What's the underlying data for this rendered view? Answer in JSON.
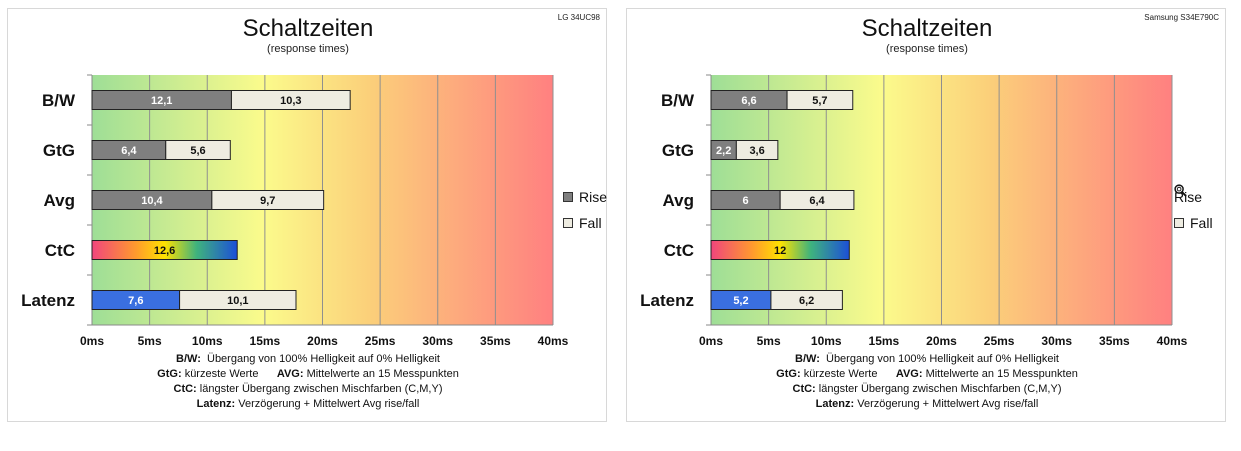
{
  "chart_data": [
    {
      "type": "bar",
      "title": "Schaltzeiten",
      "subtitle": "(response times)",
      "model": "LG 34UC98",
      "categories": [
        "B/W",
        "GtG",
        "Avg",
        "CtC",
        "Latenz"
      ],
      "series": [
        {
          "name": "Rise",
          "values": [
            12.1,
            6.4,
            10.4,
            null,
            null
          ]
        },
        {
          "name": "Fall",
          "values": [
            10.3,
            5.6,
            9.7,
            null,
            10.1
          ]
        }
      ],
      "ctc_value": 12.6,
      "latenz_delay": 7.6,
      "value_labels": {
        "B/W": [
          "12,1",
          "10,3"
        ],
        "GtG": [
          "6,4",
          "5,6"
        ],
        "Avg": [
          "10,4",
          "9,7"
        ],
        "CtC": [
          "12,6"
        ],
        "Latenz": [
          "7,6",
          "10,1"
        ]
      },
      "xlim": [
        0,
        40
      ],
      "xticks": [
        "0ms",
        "5ms",
        "10ms",
        "15ms",
        "20ms",
        "25ms",
        "30ms",
        "35ms",
        "40ms"
      ],
      "grid": true,
      "legend_position": "right"
    },
    {
      "type": "bar",
      "title": "Schaltzeiten",
      "subtitle": "(response times)",
      "model": "Samsung S34E790C",
      "categories": [
        "B/W",
        "GtG",
        "Avg",
        "CtC",
        "Latenz"
      ],
      "series": [
        {
          "name": "Rise",
          "values": [
            6.6,
            2.2,
            6,
            null,
            null
          ]
        },
        {
          "name": "Fall",
          "values": [
            5.7,
            3.6,
            6.4,
            null,
            6.2
          ]
        }
      ],
      "ctc_value": 12,
      "latenz_delay": 5.2,
      "value_labels": {
        "B/W": [
          "6,6",
          "5,7"
        ],
        "GtG": [
          "2,2",
          "3,6"
        ],
        "Avg": [
          "6",
          "6,4"
        ],
        "CtC": [
          "12"
        ],
        "Latenz": [
          "5,2",
          "6,2"
        ]
      },
      "xlim": [
        0,
        40
      ],
      "xticks": [
        "0ms",
        "5ms",
        "10ms",
        "15ms",
        "20ms",
        "25ms",
        "30ms",
        "35ms",
        "40ms"
      ],
      "grid": true,
      "legend_position": "right"
    }
  ],
  "legend": {
    "rise": "Rise",
    "fall": "Fall"
  },
  "notes": {
    "bw_label": "B/W:",
    "bw_text": "Übergang von 100% Helligkeit auf 0% Helligkeit",
    "gtg_label": "GtG:",
    "gtg_text": "kürzeste  Werte",
    "avg_label": "AVG:",
    "avg_text": "Mittelwerte  an 15 Messpunkten",
    "ctc_label": "CtC:",
    "ctc_text": "längster Übergang  zwischen Mischfarben  (C,M,Y)",
    "latenz_label": "Latenz:",
    "latenz_text": "Verzögerung  + Mittelwert  Avg rise/fall"
  },
  "colors": {
    "rise": "#7f7f7f",
    "fall": "#eeece1",
    "latenz_delay": "#3a6fe0",
    "bg_green": "#9ede96",
    "bg_yellow": "#fbfb8c",
    "bg_red": "#ff8080"
  }
}
